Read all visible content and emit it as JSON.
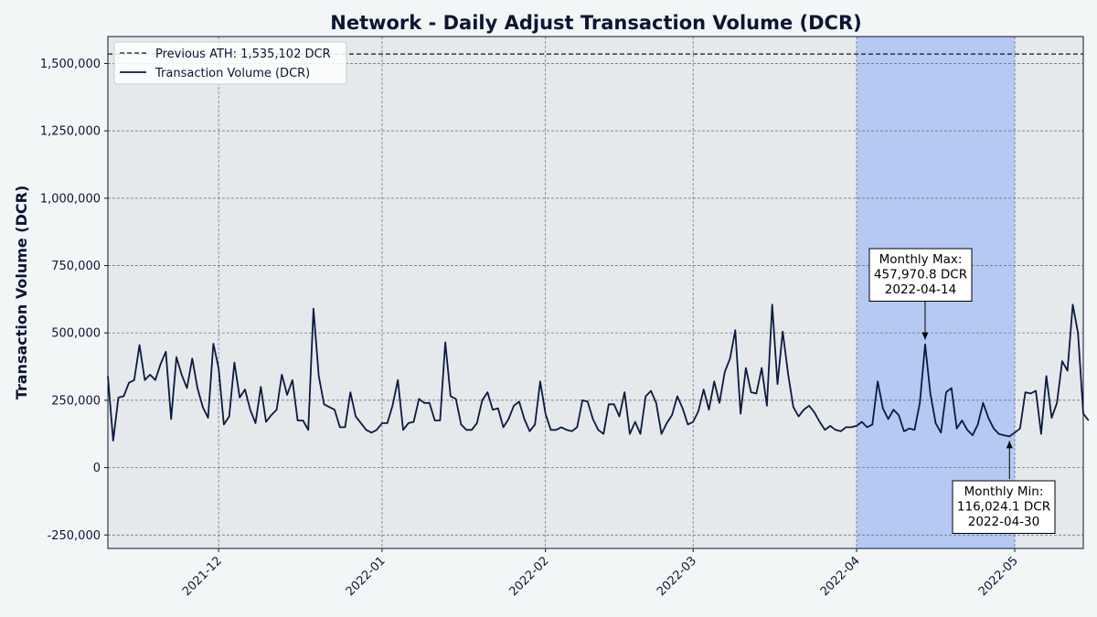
{
  "chart_data": {
    "type": "line",
    "title": "Network - Daily Adjust Transaction Volume (DCR)",
    "xlabel": "",
    "ylabel": "Transaction Volume (DCR)",
    "x_range": [
      "2021-11-10",
      "2022-05-14"
    ],
    "ylim": [
      -300000,
      1600000
    ],
    "x_ticks": [
      "2021-12",
      "2022-01",
      "2022-02",
      "2022-03",
      "2022-04",
      "2022-05"
    ],
    "y_ticks": [
      {
        "value": -250000,
        "label": "-250,000"
      },
      {
        "value": 0,
        "label": "0"
      },
      {
        "value": 250000,
        "label": "250,000"
      },
      {
        "value": 500000,
        "label": "500,000"
      },
      {
        "value": 750000,
        "label": "750,000"
      },
      {
        "value": 1000000,
        "label": "1,000,000"
      },
      {
        "value": 1250000,
        "label": "1,250,000"
      },
      {
        "value": 1500000,
        "label": "1,500,000"
      }
    ],
    "grid": true,
    "legend_position": "top-left",
    "colors": {
      "line": "#0b1a3f",
      "ath": "#0b1633",
      "highlight": "#b5c9f2",
      "plot_bg": "#e5e9ec",
      "page_bg": "#f3f6f7"
    },
    "highlight_span": [
      "2022-04-01",
      "2022-05-01"
    ],
    "reference_line": {
      "label": "Previous ATH: 1,535,102 DCR",
      "value": 1535102
    },
    "series": [
      {
        "name": "Transaction Volume (DCR)",
        "start_date": "2021-11-10",
        "values": [
          340000,
          100000,
          260000,
          265000,
          315000,
          325000,
          455000,
          325000,
          345000,
          325000,
          385000,
          430000,
          180000,
          410000,
          345000,
          295000,
          405000,
          295000,
          225000,
          185000,
          460000,
          370000,
          160000,
          190000,
          390000,
          260000,
          290000,
          215000,
          165000,
          300000,
          170000,
          195000,
          215000,
          345000,
          270000,
          325000,
          175000,
          175000,
          140000,
          590000,
          340000,
          235000,
          225000,
          215000,
          150000,
          150000,
          280000,
          190000,
          165000,
          140000,
          130000,
          140000,
          165000,
          165000,
          230000,
          325000,
          140000,
          165000,
          170000,
          255000,
          240000,
          240000,
          175000,
          175000,
          465000,
          265000,
          255000,
          160000,
          140000,
          140000,
          165000,
          250000,
          280000,
          215000,
          220000,
          150000,
          180000,
          230000,
          245000,
          180000,
          135000,
          160000,
          320000,
          200000,
          140000,
          140000,
          150000,
          140000,
          135000,
          150000,
          250000,
          245000,
          180000,
          140000,
          125000,
          235000,
          235000,
          190000,
          280000,
          125000,
          170000,
          125000,
          265000,
          285000,
          240000,
          125000,
          165000,
          195000,
          265000,
          220000,
          160000,
          170000,
          210000,
          290000,
          215000,
          320000,
          240000,
          355000,
          405000,
          510000,
          200000,
          370000,
          280000,
          275000,
          370000,
          230000,
          605000,
          310000,
          505000,
          350000,
          225000,
          190000,
          215000,
          230000,
          205000,
          170000,
          140000,
          155000,
          140000,
          135000,
          150000,
          150000,
          155000,
          170000,
          150000,
          160000,
          320000,
          220000,
          180000,
          215000,
          195000,
          135000,
          145000,
          140000,
          240000,
          457970,
          275000,
          165000,
          130000,
          280000,
          295000,
          145000,
          175000,
          140000,
          120000,
          160000,
          240000,
          185000,
          145000,
          125000,
          120000,
          116024,
          130000,
          145000,
          280000,
          275000,
          285000,
          125000,
          340000,
          185000,
          240000,
          395000,
          360000,
          605000,
          500000,
          200000,
          175000
        ]
      }
    ],
    "annotations": [
      {
        "lines": [
          "Monthly Max:",
          "457,970.8 DCR",
          "2022-04-14"
        ],
        "date": "2022-04-14",
        "value": 457970.8
      },
      {
        "lines": [
          "Monthly Min:",
          "116,024.1 DCR",
          "2022-04-30"
        ],
        "date": "2022-04-30",
        "value": 116024.1
      }
    ]
  }
}
